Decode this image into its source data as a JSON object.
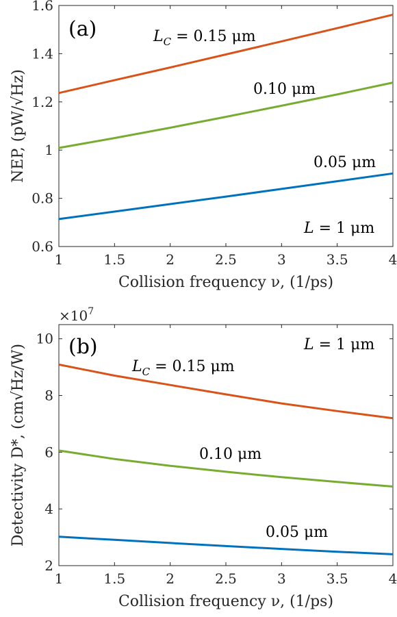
{
  "chart_data": [
    {
      "type": "line",
      "panel_label": "(a)",
      "xlabel": "Collision frequency ν, (1/ps)",
      "ylabel": "NEP, (pW/√Hz)",
      "xlim": [
        1,
        4
      ],
      "ylim": [
        0.6,
        1.6
      ],
      "xticks": [
        1,
        1.5,
        2,
        2.5,
        3,
        3.5,
        4
      ],
      "xtick_labels": [
        "1",
        "1.5",
        "2",
        "2.5",
        "3",
        "3.5",
        "4"
      ],
      "yticks": [
        0.6,
        0.8,
        1,
        1.2,
        1.4,
        1.6
      ],
      "ytick_labels": [
        "0.6",
        "0.8",
        "1",
        "1.2",
        "1.4",
        "1.6"
      ],
      "x": [
        1,
        1.5,
        2,
        2.5,
        3,
        3.5,
        4
      ],
      "series": [
        {
          "name": "L_C = 0.15 μm",
          "color": "#d95319",
          "values": [
            1.237,
            1.29,
            1.343,
            1.397,
            1.451,
            1.506,
            1.562
          ]
        },
        {
          "name": "0.10 μm",
          "color": "#77ac30",
          "values": [
            1.009,
            1.05,
            1.093,
            1.138,
            1.184,
            1.231,
            1.28
          ]
        },
        {
          "name": "0.05 μm",
          "color": "#0072bd",
          "values": [
            0.714,
            0.745,
            0.776,
            0.807,
            0.839,
            0.871,
            0.903
          ]
        }
      ],
      "annotations": {
        "lc_prefix": "L",
        "lc_sub": "C",
        "lc_value": " = 0.15 μm",
        "mid": "0.10 μm",
        "low": "0.05 μm",
        "l_prefix": "L",
        "l_value": " = 1 μm"
      }
    },
    {
      "type": "line",
      "panel_label": "(b)",
      "exponent_label": "×10",
      "exponent_power": "7",
      "xlabel": "Collision frequency ν, (1/ps)",
      "ylabel": "Detectivity D*, (cm√Hz/W)",
      "xlim": [
        1,
        4
      ],
      "ylim": [
        2,
        10.5
      ],
      "xticks": [
        1,
        1.5,
        2,
        2.5,
        3,
        3.5,
        4
      ],
      "xtick_labels": [
        "1",
        "1.5",
        "2",
        "2.5",
        "3",
        "3.5",
        "4"
      ],
      "yticks": [
        2,
        4,
        6,
        8,
        10
      ],
      "ytick_labels": [
        "2",
        "4",
        "6",
        "8",
        "10"
      ],
      "x": [
        1,
        1.5,
        2,
        2.5,
        3,
        3.5,
        4
      ],
      "series": [
        {
          "name": "L_C = 0.15 μm",
          "color": "#d95319",
          "values": [
            9.09,
            8.7,
            8.37,
            8.04,
            7.72,
            7.45,
            7.2
          ]
        },
        {
          "name": "0.10 μm",
          "color": "#77ac30",
          "values": [
            6.06,
            5.76,
            5.52,
            5.31,
            5.12,
            4.95,
            4.79
          ]
        },
        {
          "name": "0.05 μm",
          "color": "#0072bd",
          "values": [
            3.02,
            2.91,
            2.8,
            2.69,
            2.59,
            2.49,
            2.4
          ]
        }
      ],
      "annotations": {
        "lc_prefix": "L",
        "lc_sub": "C",
        "lc_value": " = 0.15 μm",
        "mid": "0.10 μm",
        "low": "0.05 μm",
        "l_prefix": "L",
        "l_value": " = 1 μm"
      }
    }
  ]
}
